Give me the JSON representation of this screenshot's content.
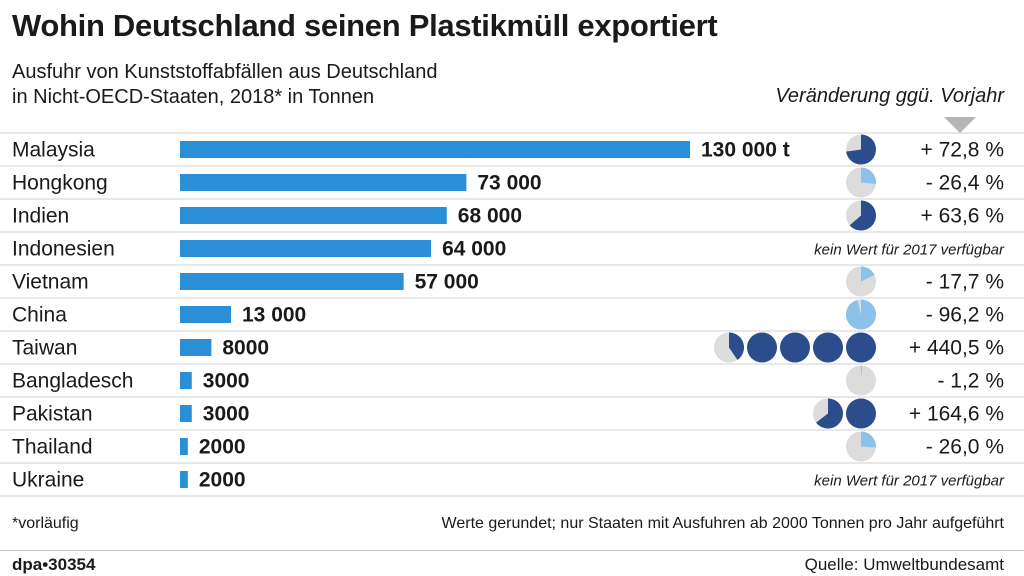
{
  "header": {
    "title": "Wohin Deutschland seinen Plastikmüll exportiert",
    "subtitle_line1": "Ausfuhr von Kunststoffabfällen aus Deutschland",
    "subtitle_line2": "in Nicht-OECD-Staaten, 2018* in Tonnen",
    "change_label": "Veränderung ggü. Vorjahr"
  },
  "footer": {
    "footnote": "*vorläufig",
    "note": "Werte gerundet; nur Staaten mit Ausfuhren ab 2000 Tonnen pro Jahr aufgeführt",
    "credit": "dpa•30354",
    "source": "Quelle: Umweltbundesamt"
  },
  "colors": {
    "bar": "#2a8fd6",
    "pie_increase": "#2b4d8c",
    "pie_decrease": "#8cc2ea",
    "pie_background": "#dcdcdc",
    "row_line": "#d0d0d0"
  },
  "chart_data": {
    "type": "bar",
    "orientation": "horizontal",
    "categories": [
      "Malaysia",
      "Hongkong",
      "Indien",
      "Indonesien",
      "Vietnam",
      "China",
      "Taiwan",
      "Bangladesch",
      "Pakistan",
      "Thailand",
      "Ukraine"
    ],
    "values": [
      130000,
      73000,
      68000,
      64000,
      57000,
      13000,
      8000,
      3000,
      3000,
      2000,
      2000
    ],
    "value_labels": [
      "130 000 t",
      "73 000",
      "68 000",
      "64 000",
      "57 000",
      "13 000",
      "8000",
      "3000",
      "3000",
      "2000",
      "2000"
    ],
    "change_percent": [
      72.8,
      -26.4,
      63.6,
      null,
      -17.7,
      -96.2,
      440.5,
      -1.2,
      164.6,
      -26.0,
      null
    ],
    "change_labels": [
      "+ 72,8 %",
      "- 26,4 %",
      "+ 63,6 %",
      "kein Wert für 2017 verfügbar",
      "- 17,7 %",
      "- 96,2 %",
      "+ 440,5 %",
      "- 1,2 %",
      "+ 164,6 %",
      "- 26,0 %",
      "kein Wert für 2017 verfügbar"
    ],
    "unit": "Tonnen"
  }
}
